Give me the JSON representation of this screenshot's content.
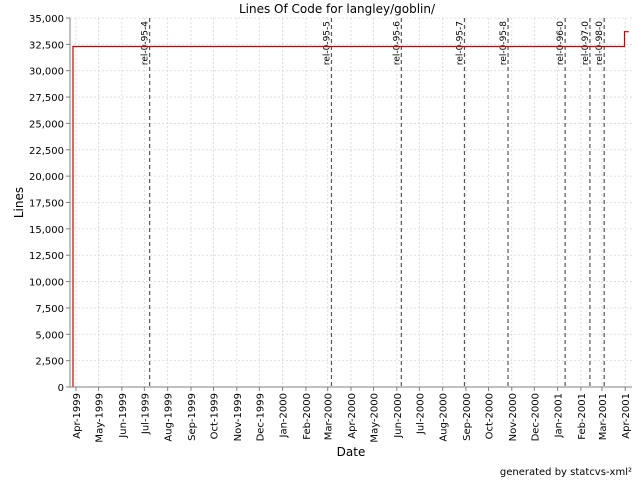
{
  "chart_data": {
    "type": "line",
    "title": "Lines Of Code for langley/goblin/",
    "xlabel": "Date",
    "ylabel": "Lines",
    "ylim": [
      0,
      35000
    ],
    "xlim": [
      "1999-03-24",
      "2001-04-10"
    ],
    "grid": true,
    "x_ticks": [
      "Apr-1999",
      "May-1999",
      "Jun-1999",
      "Jul-1999",
      "Aug-1999",
      "Sep-1999",
      "Oct-1999",
      "Nov-1999",
      "Dec-1999",
      "Jan-2000",
      "Feb-2000",
      "Mar-2000",
      "Apr-2000",
      "May-2000",
      "Jun-2000",
      "Jul-2000",
      "Aug-2000",
      "Sep-2000",
      "Oct-2000",
      "Nov-2000",
      "Dec-2000",
      "Jan-2001",
      "Feb-2001",
      "Mar-2001",
      "Apr-2001"
    ],
    "y_ticks": [
      0,
      2500,
      5000,
      7500,
      10000,
      12500,
      15000,
      17500,
      20000,
      22500,
      25000,
      27500,
      30000,
      32500,
      35000
    ],
    "y_tick_labels": [
      "0",
      "2,500",
      "5,000",
      "7,500",
      "10,000",
      "12,500",
      "15,000",
      "17,500",
      "20,000",
      "22,500",
      "25,000",
      "27,500",
      "30,000",
      "32,500",
      "35,000"
    ],
    "series": [
      {
        "color": "#cc0000",
        "points": [
          {
            "x": "1999-03-28",
            "y": 0
          },
          {
            "x": "1999-03-28",
            "y": 32300
          },
          {
            "x": "2001-03-31",
            "y": 32300
          },
          {
            "x": "2001-03-31",
            "y": 33700
          },
          {
            "x": "2001-04-05",
            "y": 33700
          }
        ]
      }
    ],
    "markers": [
      {
        "label": "rel-0-95-4",
        "x": "1999-07-08"
      },
      {
        "label": "rel-0-95-5",
        "x": "2000-03-06"
      },
      {
        "label": "rel-0-95-6",
        "x": "2000-06-07"
      },
      {
        "label": "rel-0-95-7",
        "x": "2000-08-30"
      },
      {
        "label": "rel-0-95-8",
        "x": "2000-10-27"
      },
      {
        "label": "rel-0-96-0",
        "x": "2001-01-11"
      },
      {
        "label": "rel-0-97-0",
        "x": "2001-02-13"
      },
      {
        "label": "rel-0-98-0",
        "x": "2001-03-04"
      }
    ]
  },
  "footer": "generated by statcvs-xml²"
}
